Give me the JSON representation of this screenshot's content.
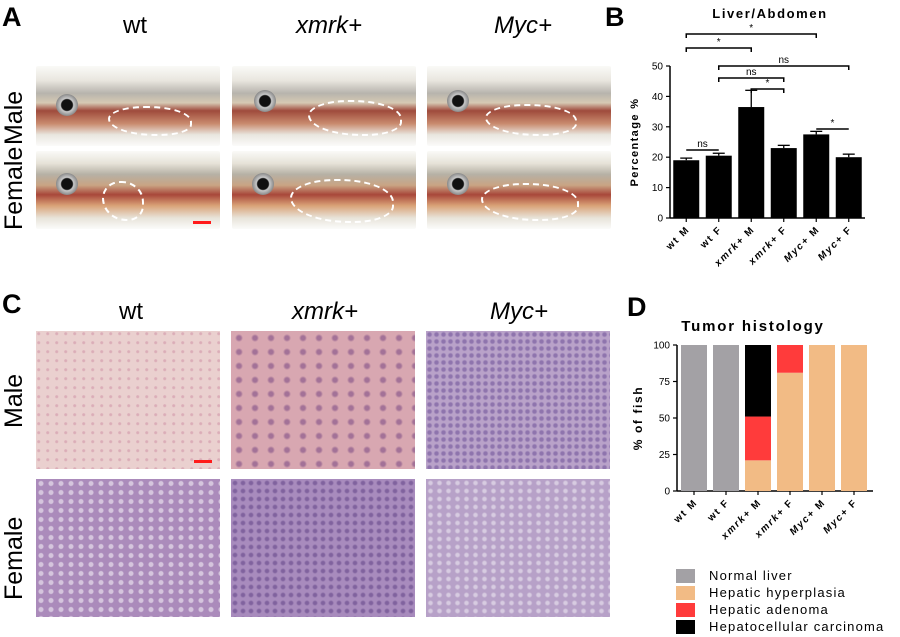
{
  "panels": {
    "a": {
      "letter": "A",
      "columns": [
        "wt",
        "xmrk+",
        "Myc+"
      ],
      "rows": [
        "Male",
        "Female"
      ]
    },
    "b": {
      "letter": "B"
    },
    "c": {
      "letter": "C",
      "columns": [
        "wt",
        "xmrk+",
        "Myc+"
      ],
      "rows": [
        "Male",
        "Female"
      ]
    },
    "d": {
      "letter": "D"
    }
  },
  "chart_data": [
    {
      "type": "bar",
      "title": "Liver/Abdomen",
      "ylabel": "Percentage %",
      "xlabel": "",
      "categories": [
        "wt M",
        "wt F",
        "xmrk+ M",
        "xmrk+ F",
        "Myc+ M",
        "Myc+ F"
      ],
      "values": [
        19,
        20.5,
        36.5,
        23,
        27.5,
        20
      ],
      "errors": [
        0.7,
        0.8,
        5.5,
        0.9,
        1.0,
        1.0
      ],
      "ylim": [
        0,
        50
      ],
      "yticks": [
        0,
        10,
        20,
        30,
        40,
        50
      ],
      "bar_color": "#000000",
      "significance": [
        {
          "from": 0,
          "to": 2,
          "label": "*"
        },
        {
          "from": 0,
          "to": 4,
          "label": "*"
        },
        {
          "from": 1,
          "to": 2,
          "label": "ns"
        },
        {
          "from": 1,
          "to": 3,
          "label": "ns"
        },
        {
          "from": 1,
          "to": 5,
          "label": "ns"
        },
        {
          "from": 2,
          "to": 3,
          "label": "*"
        },
        {
          "from": 4,
          "to": 5,
          "label": "*"
        },
        {
          "from": 0,
          "to": 1,
          "label": "ns"
        }
      ]
    },
    {
      "type": "bar",
      "stacked": true,
      "title": "Tumor histology",
      "ylabel": "% of fish",
      "xlabel": "",
      "categories": [
        "wt M",
        "wt F",
        "xmrk+ M",
        "xmrk+ F",
        "Myc+ M",
        "Myc+ F"
      ],
      "ylim": [
        0,
        100
      ],
      "yticks": [
        0,
        25,
        50,
        75,
        100
      ],
      "series": [
        {
          "name": "Normal liver",
          "color": "#a3a1a5",
          "values": [
            100,
            100,
            0,
            0,
            0,
            0
          ]
        },
        {
          "name": "Hepatic hyperplasia",
          "color": "#f2bb85",
          "values": [
            0,
            0,
            21,
            81,
            100,
            100
          ]
        },
        {
          "name": "Hepatic adenoma",
          "color": "#ff3b3b",
          "values": [
            0,
            0,
            30,
            19,
            0,
            0
          ]
        },
        {
          "name": "Hepatocellular carcinoma",
          "color": "#000000",
          "values": [
            0,
            0,
            49,
            0,
            0,
            0
          ]
        }
      ],
      "legend_position": "bottom"
    }
  ]
}
